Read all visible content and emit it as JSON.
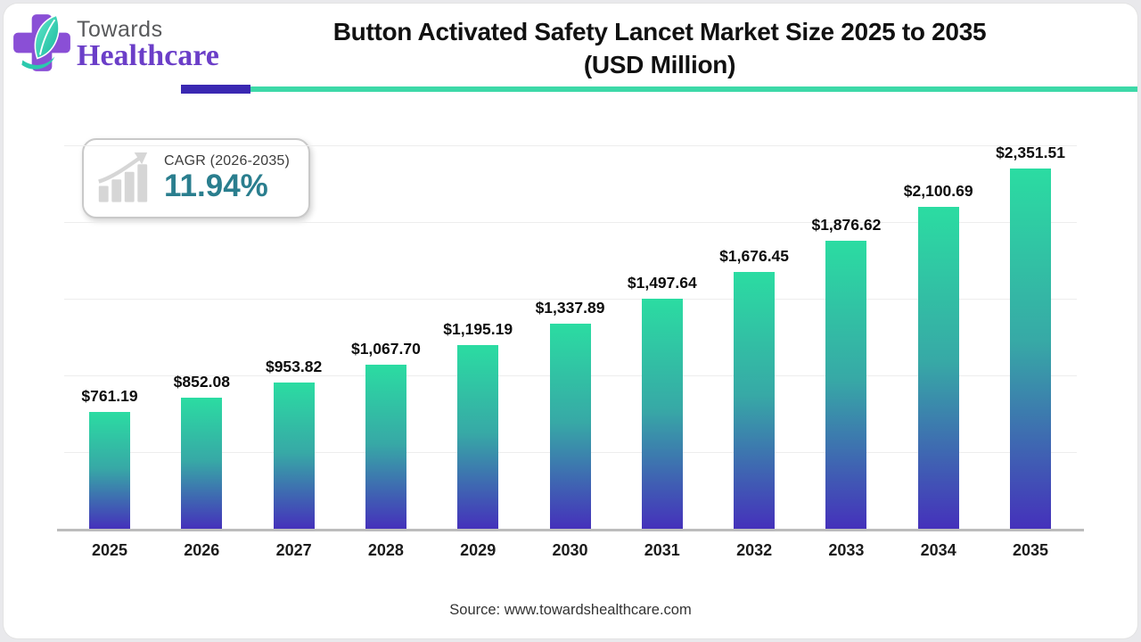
{
  "header": {
    "logo_line1": "Towards",
    "logo_line2": "Healthcare",
    "title_line1": "Button Activated Safety Lancet Market Size 2025 to 2035",
    "title_line2": "(USD Million)"
  },
  "cagr_badge": {
    "label": "CAGR (2026-2035)",
    "value": "11.94%"
  },
  "source": "Source: www.towardshealthcare.com",
  "colors": {
    "bar_gradient_top": "#2BDCA2",
    "bar_gradient_mid": "#37A9A6",
    "bar_gradient_bottom": "#4531BB",
    "cagr_value": "#2A7E8E",
    "stripe_purple": "#3A28B2",
    "stripe_teal": "#3DD9A8",
    "logo_purple": "#6B3EC8",
    "axis_line": "#bcbcbc",
    "gridline": "#ededed"
  },
  "chart_data": {
    "type": "bar",
    "title": "Button Activated Safety Lancet Market Size 2025 to 2035 (USD Million)",
    "xlabel": "",
    "ylabel": "",
    "categories": [
      "2025",
      "2026",
      "2027",
      "2028",
      "2029",
      "2030",
      "2031",
      "2032",
      "2033",
      "2034",
      "2035"
    ],
    "values": [
      761.19,
      852.08,
      953.82,
      1067.7,
      1195.19,
      1337.89,
      1497.64,
      1676.45,
      1876.62,
      2100.69,
      2351.51
    ],
    "value_labels": [
      "$761.19",
      "$852.08",
      "$953.82",
      "$1,067.70",
      "$1,195.19",
      "$1,337.89",
      "$1,497.64",
      "$1,676.45",
      "$1,876.62",
      "$2,100.69",
      "$2,351.51"
    ],
    "ylim": [
      0,
      2500
    ],
    "gridline_interval": 500,
    "grid": true,
    "legend": false
  }
}
